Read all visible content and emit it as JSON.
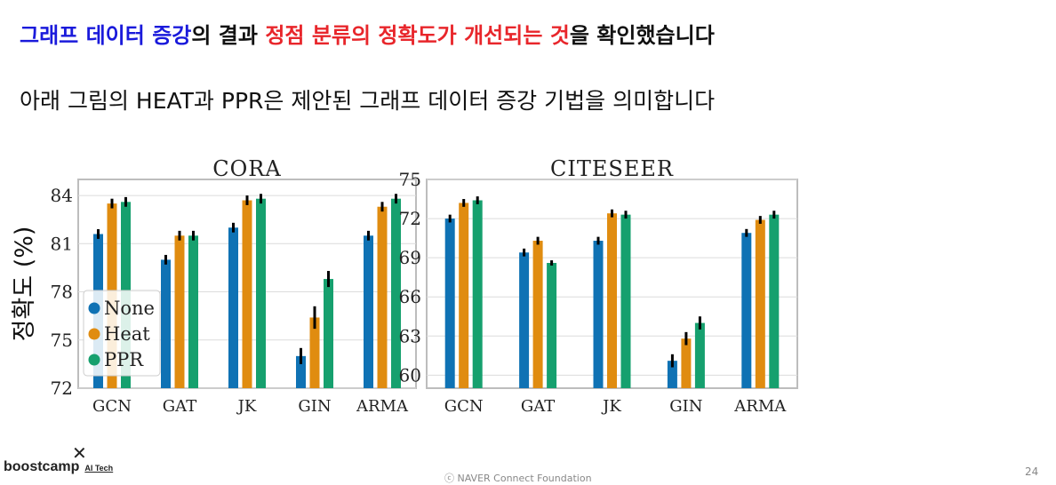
{
  "header": {
    "title_parts": [
      {
        "text": "그래프 데이터 증강",
        "color": "#1a1adb"
      },
      {
        "text": "의 결과 ",
        "color": "#111111"
      },
      {
        "text": "정점 분류의 정확도가 개선되는 것",
        "color": "#e8262b"
      },
      {
        "text": "을 확인했습니다",
        "color": "#111111"
      }
    ],
    "subtitle": "아래 그림의 HEAT과 PPR은 제안된 그래프 데이터 증강 기법을 의미합니다"
  },
  "footer": {
    "logo_mark": "✕",
    "logo_text": "boostcamp",
    "logo_sub": "AI Tech",
    "copyright": "ⓒ  NAVER Connect Foundation",
    "page_number": "24"
  },
  "colors": {
    "None": "#0f72b4",
    "Heat": "#e08c10",
    "PPR": "#16a06e"
  },
  "chart_data": [
    {
      "type": "bar",
      "title": "CORA",
      "ylabel": "정확도 (%)",
      "categories": [
        "GCN",
        "GAT",
        "JK",
        "GIN",
        "ARMA"
      ],
      "ylim": [
        72,
        85
      ],
      "yticks": [
        72,
        75,
        78,
        81,
        84
      ],
      "legend": {
        "placement": "bottom-left",
        "entries": [
          "None",
          "Heat",
          "PPR"
        ]
      },
      "series": [
        {
          "name": "None",
          "values": [
            81.6,
            80.0,
            82.0,
            74.0,
            81.5
          ],
          "errors": [
            0.3,
            0.3,
            0.3,
            0.5,
            0.3
          ]
        },
        {
          "name": "Heat",
          "values": [
            83.5,
            81.5,
            83.7,
            76.4,
            83.3
          ],
          "errors": [
            0.3,
            0.3,
            0.3,
            0.7,
            0.3
          ]
        },
        {
          "name": "PPR",
          "values": [
            83.6,
            81.5,
            83.8,
            78.8,
            83.8
          ],
          "errors": [
            0.3,
            0.3,
            0.3,
            0.5,
            0.3
          ]
        }
      ]
    },
    {
      "type": "bar",
      "title": "CITESEER",
      "categories": [
        "GCN",
        "GAT",
        "JK",
        "GIN",
        "ARMA"
      ],
      "ylim": [
        59,
        75
      ],
      "yticks": [
        60,
        63,
        66,
        69,
        72,
        75
      ],
      "series": [
        {
          "name": "None",
          "values": [
            72.0,
            69.4,
            70.3,
            61.1,
            70.9
          ],
          "errors": [
            0.3,
            0.3,
            0.3,
            0.5,
            0.3
          ]
        },
        {
          "name": "Heat",
          "values": [
            73.2,
            70.3,
            72.4,
            62.8,
            71.9
          ],
          "errors": [
            0.3,
            0.3,
            0.3,
            0.5,
            0.3
          ]
        },
        {
          "name": "PPR",
          "values": [
            73.4,
            68.6,
            72.3,
            64.0,
            72.3
          ],
          "errors": [
            0.3,
            0.2,
            0.3,
            0.5,
            0.3
          ]
        }
      ]
    }
  ]
}
